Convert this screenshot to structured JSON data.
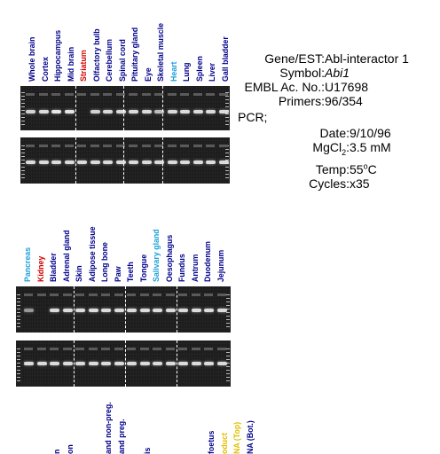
{
  "panel1": {
    "lanes": [
      {
        "label": "Whole brain",
        "color": "#00008b"
      },
      {
        "label": "Cortex",
        "color": "#00008b"
      },
      {
        "label": "Hippocampus",
        "color": "#00008b"
      },
      {
        "label": "Mid brain",
        "color": "#00008b"
      },
      {
        "label": "Striatum",
        "color": "#d10000"
      },
      {
        "label": "Olfactory bulb",
        "color": "#00008b"
      },
      {
        "label": "Cerebellum",
        "color": "#00008b"
      },
      {
        "label": "Spinal cord",
        "color": "#00008b"
      },
      {
        "label": "Pituitary gland",
        "color": "#00008b"
      },
      {
        "label": "Eye",
        "color": "#00008b"
      },
      {
        "label": "Skeletal muscle",
        "color": "#00008b"
      },
      {
        "label": "Heart",
        "color": "#1aa0d8"
      },
      {
        "label": "Lung",
        "color": "#00008b"
      },
      {
        "label": "Spleen",
        "color": "#00008b"
      },
      {
        "label": "Liver",
        "color": "#00008b"
      },
      {
        "label": "Gall bladder",
        "color": "#00008b"
      }
    ],
    "gel_top_bands": [
      0.9,
      0.95,
      1,
      1,
      0,
      0.9,
      0.95,
      0.95,
      0.95,
      0.95,
      0.8,
      0.95,
      0.95,
      0.95,
      0.95,
      0.95
    ],
    "gel_bottom_bands": [
      0.95,
      0.95,
      0.95,
      0.95,
      0.95,
      0.95,
      0.95,
      0.95,
      0.95,
      0.95,
      0.95,
      0.95,
      0.95,
      0.95,
      0.95,
      0.95
    ]
  },
  "panel2": {
    "lanes": [
      {
        "label": "Pancreas",
        "color": "#1aa0d8"
      },
      {
        "label": "Kidney",
        "color": "#d10000"
      },
      {
        "label": "Bladder",
        "color": "#00008b"
      },
      {
        "label": "Adrenal gland",
        "color": "#00008b"
      },
      {
        "label": "Skin",
        "color": "#00008b"
      },
      {
        "label": "Adipose tissue",
        "color": "#00008b"
      },
      {
        "label": "Long bone",
        "color": "#00008b"
      },
      {
        "label": "Paw",
        "color": "#00008b"
      },
      {
        "label": "Teeth",
        "color": "#00008b"
      },
      {
        "label": "Tongue",
        "color": "#00008b"
      },
      {
        "label": "Salivary gland",
        "color": "#1aa0d8"
      },
      {
        "label": "Oesophagus",
        "color": "#00008b"
      },
      {
        "label": "Fundus",
        "color": "#00008b"
      },
      {
        "label": "Antrum",
        "color": "#00008b"
      },
      {
        "label": "Duodenum",
        "color": "#00008b"
      },
      {
        "label": "Jejunum",
        "color": "#00008b"
      }
    ],
    "gel_top_bands": [
      0.6,
      0,
      0.95,
      0.95,
      0.95,
      0.95,
      0.95,
      0.95,
      0.95,
      0.95,
      0.95,
      0.95,
      0.95,
      0.95,
      0.95,
      0.95
    ],
    "gel_bottom_bands": [
      0.95,
      0.95,
      0.95,
      0.95,
      0.95,
      0.95,
      0.95,
      0.95,
      0.95,
      0.95,
      0.95,
      0.95,
      0.95,
      0.95,
      0.95,
      0.95
    ]
  },
  "panel3": {
    "lanes": [
      {
        "label": "n",
        "color": "#00008b"
      },
      {
        "label": "on",
        "color": "#00008b"
      },
      {
        "label": "",
        "color": "#00008b"
      },
      {
        "label": "",
        "color": "#00008b"
      },
      {
        "label": "and non-preg.",
        "color": "#00008b"
      },
      {
        "label": "and preg.",
        "color": "#00008b"
      },
      {
        "label": "",
        "color": "#00008b"
      },
      {
        "label": "is",
        "color": "#00008b"
      },
      {
        "label": "",
        "color": "#00008b"
      },
      {
        "label": "",
        "color": "#00008b"
      },
      {
        "label": "",
        "color": "#00008b"
      },
      {
        "label": "",
        "color": "#00008b"
      },
      {
        "label": "foetus",
        "color": "#00008b"
      },
      {
        "label": "oduct",
        "color": "#e0c000"
      },
      {
        "label": "NA (Top)",
        "color": "#e0c000"
      },
      {
        "label": "NA (Bot.)",
        "color": "#00008b"
      }
    ]
  },
  "info": {
    "gene_label": "Gene/EST:",
    "gene_value": "Abl-interactor 1",
    "symbol_label": "Symbol:",
    "symbol_value": "Abi1",
    "embl_label": "EMBL Ac. No.:",
    "embl_value": "U17698",
    "primers_label": "Primers:",
    "primers_value": "96/354",
    "pcr_label": "PCR;",
    "date_label": "Date:",
    "date_value": "9/10/96",
    "mgcl_label_main": "MgCl",
    "mgcl_label_sub": "2",
    "mgcl_label_colon": ":",
    "mgcl_value": "3.5 mM",
    "temp_label": "Temp:",
    "temp_value_num": "55",
    "temp_value_sup": "o",
    "temp_value_unit": "C",
    "cycles_label": "Cycles:",
    "cycles_value": "x35"
  }
}
